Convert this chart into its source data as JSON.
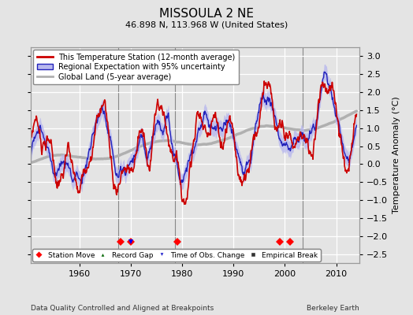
{
  "title": "MISSOULA 2 NE",
  "subtitle": "46.898 N, 113.968 W (United States)",
  "ylabel": "Temperature Anomaly (°C)",
  "footer_left": "Data Quality Controlled and Aligned at Breakpoints",
  "footer_right": "Berkeley Earth",
  "xlim": [
    1950.5,
    2014.5
  ],
  "ylim": [
    -2.75,
    3.25
  ],
  "yticks": [
    -2.5,
    -2,
    -1.5,
    -1,
    -0.5,
    0,
    0.5,
    1,
    1.5,
    2,
    2.5,
    3
  ],
  "xticks": [
    1960,
    1970,
    1980,
    1990,
    2000,
    2010
  ],
  "station_move_years": [
    1968,
    1970,
    1979,
    1999,
    2001
  ],
  "time_obs_change_years": [
    1970
  ],
  "background_color": "#e4e4e4",
  "plot_bg_color": "#e4e4e4",
  "grid_color": "#ffffff",
  "station_line_color": "#cc0000",
  "regional_line_color": "#2222bb",
  "regional_fill_color": "#b8b8ee",
  "global_line_color": "#b0b0b0",
  "vline_color": "#888888",
  "vline_years": [
    1967.5,
    1978.5,
    2003.5
  ]
}
